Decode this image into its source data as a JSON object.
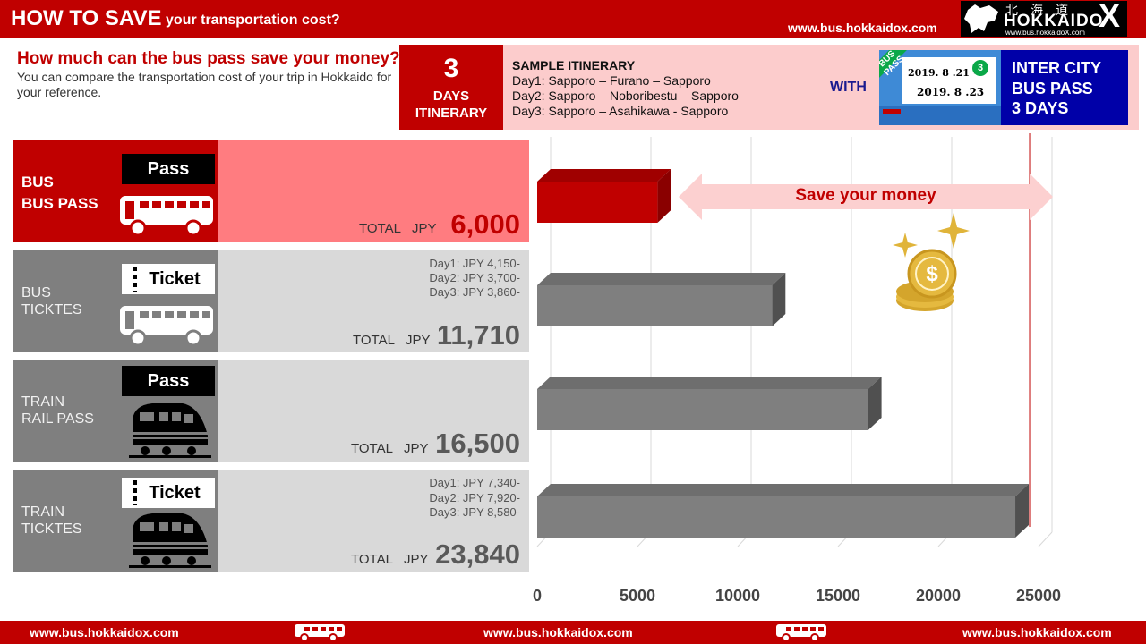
{
  "header": {
    "title_main": "HOW TO SAVE",
    "title_sub": "your transportation cost?",
    "url": "www.bus.hokkaidox.com",
    "logo_kanji": "北海道",
    "logo_word": "HOKKAIDO",
    "logo_x": "X",
    "logo_url": "www.bus.hokkaidoX.com"
  },
  "intro": {
    "question": "How much can the bus pass save your money?",
    "description": "You can compare the transportation cost of your trip in Hokkaido for your reference."
  },
  "itinerary": {
    "days_number": "3",
    "days_label_1": "DAYS",
    "days_label_2": "ITINERARY",
    "heading": "SAMPLE ITINERARY",
    "day1": "Day1: Sapporo – Furano – Sapporo",
    "day2": "Day2: Sapporo – Noboribestu – Sapporo",
    "day3": "Day3: Sapporo – Asahikawa - Sapporo",
    "with_label": "WITH",
    "ticket_band": "BUS PASS",
    "ticket_date1": "2019. 8 .21 ~",
    "ticket_date2": "2019. 8 .23",
    "ticket_days": "3",
    "pass_line1": "INTER CITY",
    "pass_line2": "BUS PASS",
    "pass_line3": "3 DAYS"
  },
  "rows": [
    {
      "cat1": "BUS",
      "cat2": "BUS PASS",
      "tag": "Pass",
      "total_label": "TOTAL",
      "currency": "JPY",
      "total": "6,000",
      "days": []
    },
    {
      "cat1": "BUS",
      "cat2": "TICKTES",
      "tag": "Ticket",
      "total_label": "TOTAL",
      "currency": "JPY",
      "total": "11,710",
      "days": [
        "Day1: JPY  4,150-",
        "Day2: JPY  3,700-",
        "Day3: JPY  3,860-"
      ]
    },
    {
      "cat1": "TRAIN",
      "cat2": "RAIL PASS",
      "tag": "Pass",
      "total_label": "TOTAL",
      "currency": "JPY",
      "total": "16,500",
      "days": []
    },
    {
      "cat1": "TRAIN",
      "cat2": "TICKTES",
      "tag": "Ticket",
      "total_label": "TOTAL",
      "currency": "JPY",
      "total": "23,840",
      "days": [
        "Day1: JPY  7,340-",
        "Day2: JPY  7,920-",
        "Day3: JPY  8,580-"
      ]
    }
  ],
  "chart_data": {
    "type": "bar",
    "orientation": "horizontal",
    "categories": [
      "BUS PASS",
      "BUS TICKTES",
      "TRAIN RAIL PASS",
      "TRAIN TICKTES"
    ],
    "values": [
      6000,
      11710,
      16500,
      23840
    ],
    "xlim": [
      0,
      25000
    ],
    "xticks": [
      "0",
      "5000",
      "10000",
      "15000",
      "20000",
      "25000"
    ],
    "grid": true,
    "annotation": "Save your money"
  },
  "colors": {
    "brand_red": "#c00000",
    "highlight_panel": "#ff7c80",
    "grey_label": "#7f7f7f",
    "grey_panel": "#d9d9d9",
    "bar_grey": "#7f7f7f",
    "pass_blue": "#0000a8"
  },
  "icons": [
    "bus-icon",
    "train-icon",
    "coin-stack-icon",
    "sparkle-icon",
    "double-arrow-icon"
  ],
  "footer": {
    "url_left": "www.bus.hokkaidox.com",
    "url_center": "www.bus.hokkaidox.com",
    "url_right": "www.bus.hokkaidox.com"
  }
}
